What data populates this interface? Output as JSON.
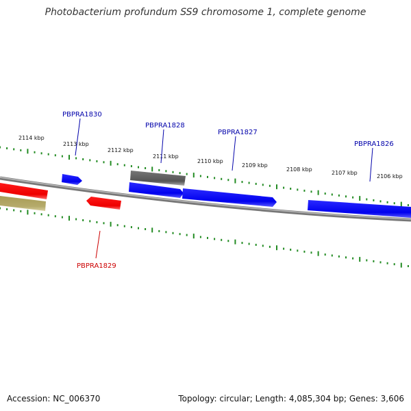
{
  "title": "Photobacterium profundum SS9 chromosome 1, complete genome",
  "footer": {
    "accession": "Accession: NC_006370",
    "summary": "Topology: circular; Length: 4,085,304 bp; Genes: 3,606"
  },
  "colors": {
    "forward_gene": "#0000ff",
    "reverse_gene": "#ff0000",
    "other_gene": "#666666",
    "olive_feature": "#b5ab6b",
    "backbone": "#888888",
    "ticks": "#228b22",
    "forward_label": "#0000aa",
    "reverse_label": "#cc0000"
  },
  "scale": {
    "unit": "kbp",
    "labels": [
      "2114 kbp",
      "2113 kbp",
      "2112 kbp",
      "2111 kbp",
      "2110 kbp",
      "2109 kbp",
      "2108 kbp",
      "2107 kbp",
      "2106 kbp"
    ]
  },
  "genes": {
    "forward": [
      "PBPRA1830",
      "PBPRA1828",
      "PBPRA1827",
      "PBPRA1826"
    ],
    "reverse": [
      "PBPRA1829"
    ]
  }
}
